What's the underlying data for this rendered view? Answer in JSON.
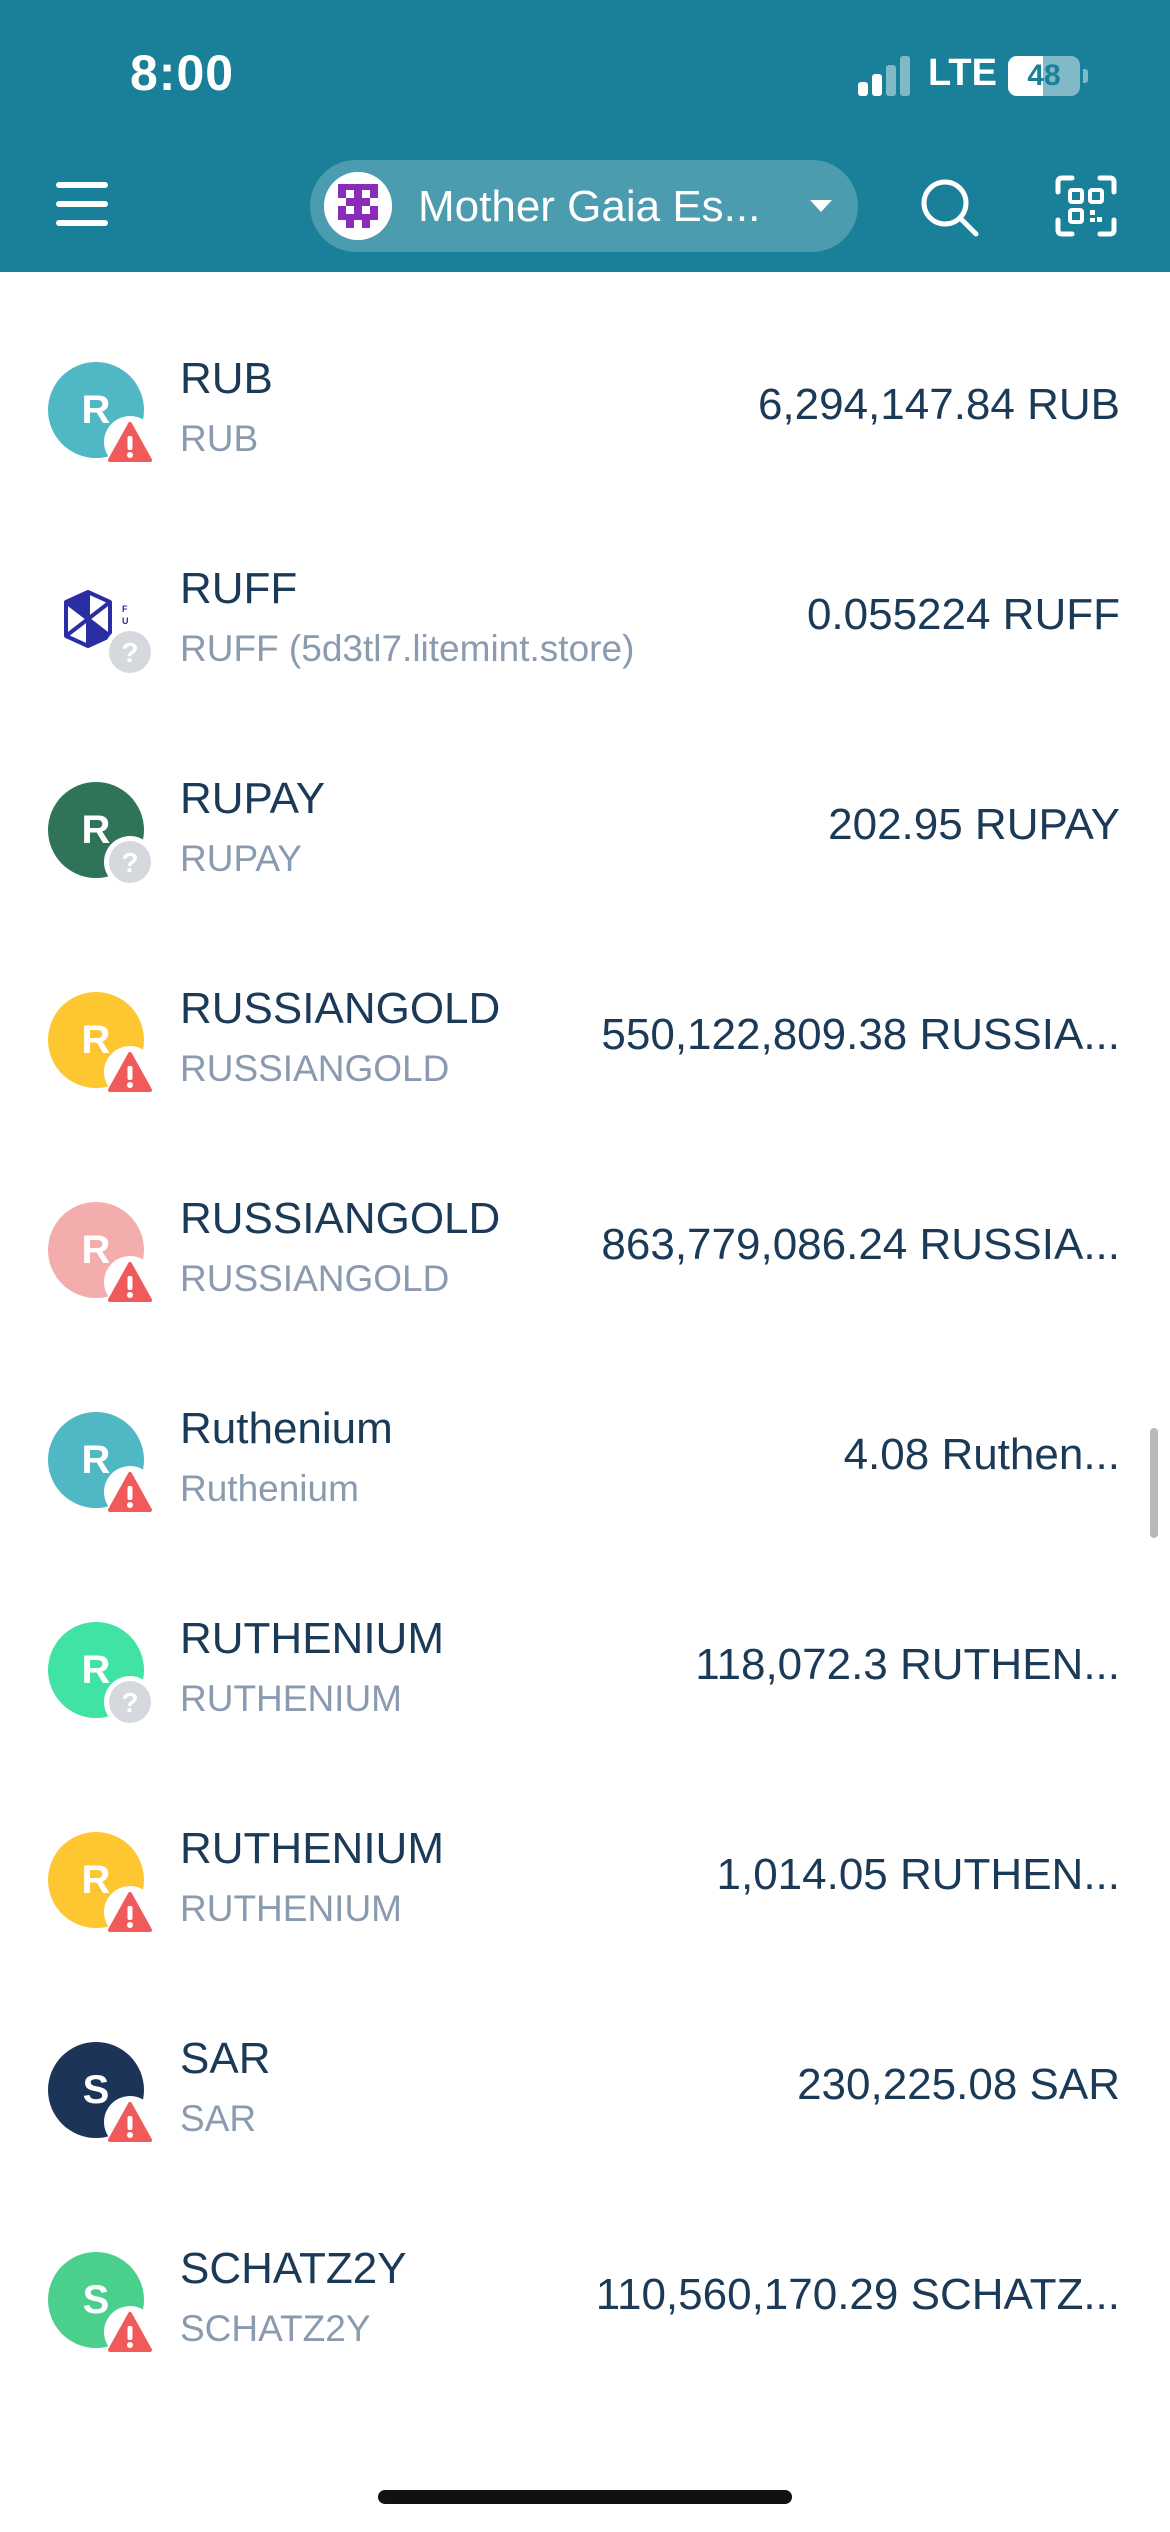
{
  "status_bar": {
    "time": "8:00",
    "network": "LTE",
    "battery": "48",
    "battery_level": 0.48
  },
  "header": {
    "account_name": "Mother Gaia Es...",
    "icons": {
      "menu": "menu-icon",
      "search": "search-icon",
      "scan": "qr-scan-icon",
      "caret": "chevron-down-icon"
    }
  },
  "colors": {
    "header_bg": "#1a8099",
    "warning": "#f05a5a",
    "unknown": "#d5d8dd",
    "text_primary": "#1b3a57",
    "text_secondary": "#8a9bb0"
  },
  "tokens": [
    {
      "letter": "R",
      "symbol": "RUB",
      "name": "RUB",
      "balance": "6,294,147.84 RUB",
      "color": "#4fb8c4",
      "badge": "warning"
    },
    {
      "letter": "",
      "symbol": "RUFF",
      "name": "RUFF (5d3tl7.litemint.store)",
      "balance": "0.055224 RUFF",
      "color": "#ffffff",
      "badge": "unknown",
      "image_icon": true
    },
    {
      "letter": "R",
      "symbol": "RUPAY",
      "name": "RUPAY",
      "balance": "202.95 RUPAY",
      "color": "#2f7358",
      "badge": "unknown"
    },
    {
      "letter": "R",
      "symbol": "RUSSIANGOLD",
      "name": "RUSSIANGOLD",
      "balance": "550,122,809.38 RUSSIA...",
      "color": "#fec631",
      "badge": "warning"
    },
    {
      "letter": "R",
      "symbol": "RUSSIANGOLD",
      "name": "RUSSIANGOLD",
      "balance": "863,779,086.24 RUSSIA...",
      "color": "#f3adad",
      "badge": "warning"
    },
    {
      "letter": "R",
      "symbol": "Ruthenium",
      "name": "Ruthenium",
      "balance": "4.08 Ruthen...",
      "color": "#4fb8c4",
      "badge": "warning"
    },
    {
      "letter": "R",
      "symbol": "RUTHENIUM",
      "name": "RUTHENIUM",
      "balance": "118,072.3 RUTHEN...",
      "color": "#40e3a4",
      "badge": "unknown"
    },
    {
      "letter": "R",
      "symbol": "RUTHENIUM",
      "name": "RUTHENIUM",
      "balance": "1,014.05 RUTHEN...",
      "color": "#fec631",
      "badge": "warning"
    },
    {
      "letter": "S",
      "symbol": "SAR",
      "name": "SAR",
      "balance": "230,225.08 SAR",
      "color": "#1d3459",
      "badge": "warning"
    },
    {
      "letter": "S",
      "symbol": "SCHATZ2Y",
      "name": "SCHATZ2Y",
      "balance": "110,560,170.29 SCHATZ...",
      "color": "#4bcf8d",
      "badge": "warning"
    }
  ]
}
